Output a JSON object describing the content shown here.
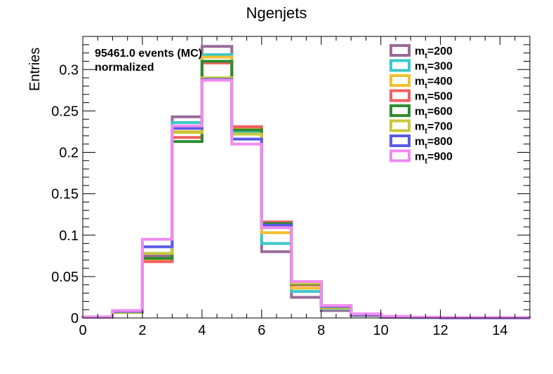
{
  "chart_data": {
    "type": "histogram",
    "title": "Ngenjets",
    "xlabel": "",
    "ylabel": "Entries",
    "xlim": [
      0,
      15
    ],
    "ylim": [
      0,
      0.34
    ],
    "grid": false,
    "legend_position": "top-right",
    "x_ticks": [
      "0",
      "2",
      "4",
      "6",
      "8",
      "10",
      "12",
      "14"
    ],
    "y_ticks": [
      "0",
      "0.05",
      "0.1",
      "0.15",
      "0.2",
      "0.25",
      "0.3"
    ],
    "bin_edges": [
      0,
      1,
      2,
      3,
      4,
      5,
      6,
      7,
      8,
      9,
      10,
      11,
      12,
      13,
      14,
      15
    ],
    "annotations": [
      "95461.0 events (MC)",
      "normalized"
    ],
    "series": [
      {
        "name": "m_t=200",
        "label_main": "m",
        "label_sub": "t",
        "label_rest": "=200",
        "color": "#9a6b98",
        "values": [
          0.001,
          0.007,
          0.075,
          0.243,
          0.328,
          0.222,
          0.08,
          0.025,
          0.009,
          0.003,
          0.001,
          0.0005,
          0,
          0,
          0
        ]
      },
      {
        "name": "m_t=300",
        "label_main": "m",
        "label_sub": "t",
        "label_rest": "=300",
        "color": "#3cc8c8",
        "values": [
          0.001,
          0.007,
          0.078,
          0.236,
          0.318,
          0.225,
          0.09,
          0.032,
          0.011,
          0.004,
          0.001,
          0.0005,
          0,
          0,
          0
        ]
      },
      {
        "name": "m_t=400",
        "label_main": "m",
        "label_sub": "t",
        "label_rest": "=400",
        "color": "#f0c030",
        "values": [
          0.001,
          0.007,
          0.07,
          0.225,
          0.315,
          0.228,
          0.103,
          0.036,
          0.012,
          0.004,
          0.001,
          0.0005,
          0,
          0,
          0
        ]
      },
      {
        "name": "m_t=500",
        "label_main": "m",
        "label_sub": "t",
        "label_rest": "=500",
        "color": "#f06060",
        "values": [
          0.001,
          0.007,
          0.068,
          0.218,
          0.308,
          0.231,
          0.116,
          0.04,
          0.013,
          0.004,
          0.001,
          0.0005,
          0,
          0,
          0
        ]
      },
      {
        "name": "m_t=600",
        "label_main": "m",
        "label_sub": "t",
        "label_rest": "=600",
        "color": "#2e8b2e",
        "values": [
          0.001,
          0.007,
          0.072,
          0.213,
          0.31,
          0.227,
          0.114,
          0.041,
          0.013,
          0.004,
          0.001,
          0.0005,
          0,
          0,
          0
        ]
      },
      {
        "name": "m_t=700",
        "label_main": "m",
        "label_sub": "t",
        "label_rest": "=700",
        "color": "#c8c83c",
        "values": [
          0.001,
          0.007,
          0.078,
          0.224,
          0.29,
          0.222,
          0.11,
          0.042,
          0.013,
          0.004,
          0.001,
          0.0005,
          0,
          0,
          0
        ]
      },
      {
        "name": "m_t=800",
        "label_main": "m",
        "label_sub": "t",
        "label_rest": "=800",
        "color": "#5a5ae6",
        "values": [
          0.001,
          0.008,
          0.086,
          0.229,
          0.288,
          0.216,
          0.112,
          0.044,
          0.014,
          0.004,
          0.001,
          0.0005,
          0,
          0,
          0
        ]
      },
      {
        "name": "m_t=900",
        "label_main": "m",
        "label_sub": "t",
        "label_rest": "=900",
        "color": "#f08cf0",
        "values": [
          0.001,
          0.009,
          0.095,
          0.232,
          0.287,
          0.21,
          0.109,
          0.044,
          0.015,
          0.005,
          0.002,
          0.001,
          0.0005,
          0.0005,
          0.0005
        ]
      }
    ]
  }
}
